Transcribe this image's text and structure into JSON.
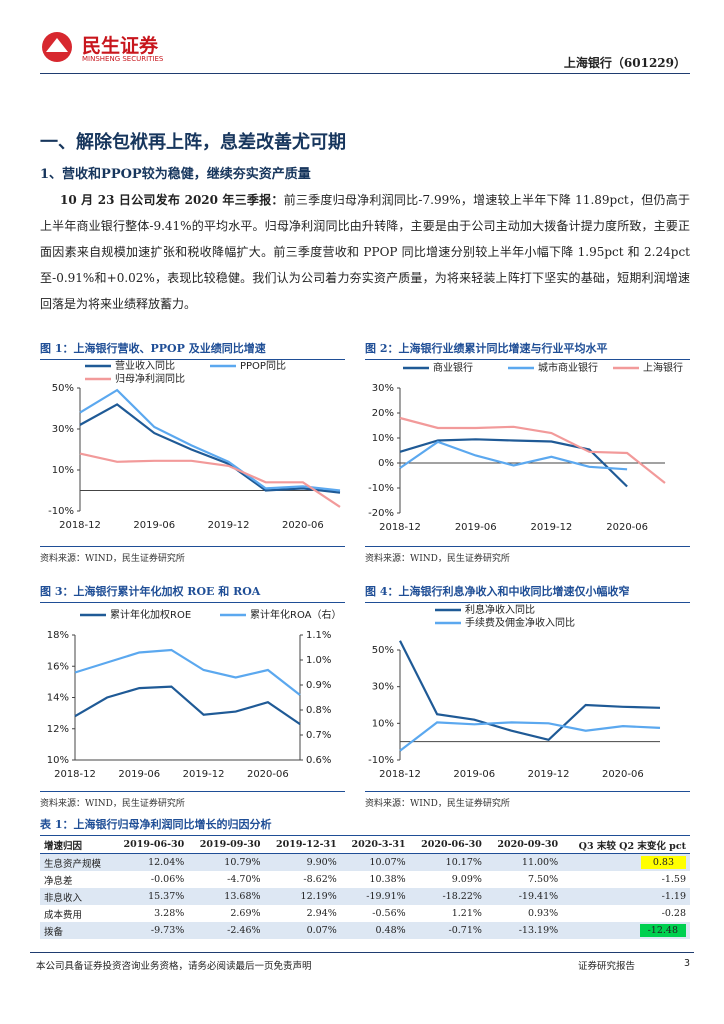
{
  "header": {
    "logo_cn": "民生证券",
    "logo_en": "MINSHENG SECURITIES",
    "stock": "上海银行（601229）"
  },
  "heading": "一、解除包袱再上阵，息差改善尤可期",
  "subheading": "1、营收和PPOP较为稳健，继续夯实资产质量",
  "body": {
    "lead": "10 月 23 日公司发布 2020 年三季报：",
    "text": "前三季度归母净利润同比-7.99%，增速较上半年下降 11.89pct，但仍高于上半年商业银行整体-9.41%的平均水平。归母净利润同比由升转降，主要是由于公司主动加大拨备计提力度所致，主要正面因素来自规模加速扩张和税收降幅扩大。前三季度营收和 PPOP 同比增速分别较上半年小幅下降 1.95pct 和 2.24pct 至-0.91%和+0.02%，表现比较稳健。我们认为公司着力夯实资产质量，为将来轻装上阵打下坚实的基础，短期利润增速回落是为将来业绩释放蓄力。"
  },
  "chart_data": [
    {
      "type": "line",
      "title": "图 1：上海银行营收、PPOP 及业绩同比增速",
      "source": "资料来源：WIND，民生证券研究所",
      "categories": [
        "2018-12",
        null,
        "2019-06",
        null,
        "2019-12",
        null,
        "2020-06",
        null
      ],
      "ylim": [
        -10,
        50
      ],
      "yticks": [
        {
          "value": -10,
          "label": "-10%"
        },
        {
          "value": 10,
          "label": "10%"
        },
        {
          "value": 30,
          "label": "30%"
        },
        {
          "value": 50,
          "label": "50%"
        }
      ],
      "series": [
        {
          "name": "营业收入同比",
          "color": "#1f5a96",
          "values": [
            32,
            42,
            28,
            20,
            13,
            0,
            1,
            -1
          ]
        },
        {
          "name": "PPOP同比",
          "color": "#5ba8ef",
          "values": [
            38,
            49,
            31,
            22,
            14,
            1,
            2,
            0
          ]
        },
        {
          "name": "归母净利润同比",
          "color": "#f29a9a",
          "values": [
            18,
            14,
            14.5,
            14.5,
            12,
            4,
            4,
            -8
          ]
        }
      ]
    },
    {
      "type": "line",
      "title": "图 2：上海银行业绩累计同比增速与行业平均水平",
      "source": "资料来源：WIND，民生证券研究所",
      "categories": [
        "2018-12",
        null,
        "2019-06",
        null,
        "2019-12",
        null,
        "2020-06",
        null
      ],
      "ylim": [
        -20,
        30
      ],
      "yticks": [
        {
          "value": -20,
          "label": "-20%"
        },
        {
          "value": -10,
          "label": "-10%"
        },
        {
          "value": 0,
          "label": "0%"
        },
        {
          "value": 10,
          "label": "10%"
        },
        {
          "value": 20,
          "label": "20%"
        },
        {
          "value": 30,
          "label": "30%"
        }
      ],
      "series": [
        {
          "name": "商业银行",
          "color": "#1f5a96",
          "values": [
            4.5,
            9,
            9.5,
            9,
            8.6,
            5.4,
            -9.4,
            null
          ]
        },
        {
          "name": "城市商业银行",
          "color": "#5ba8ef",
          "values": [
            -2,
            8.5,
            3,
            -1,
            2.5,
            -1.5,
            -2.5,
            null
          ]
        },
        {
          "name": "上海银行",
          "color": "#f29a9a",
          "values": [
            18,
            14,
            14,
            14.5,
            12,
            4.5,
            4,
            -8
          ]
        }
      ]
    },
    {
      "type": "line",
      "title": "图 3：上海银行累计年化加权 ROE 和 ROA",
      "source": "资料来源：WIND，民生证券研究所",
      "categories": [
        "2018-12",
        null,
        "2019-06",
        null,
        "2019-12",
        null,
        "2020-06",
        null
      ],
      "ylim": [
        10,
        18
      ],
      "yticks": [
        {
          "value": 10,
          "label": "10%"
        },
        {
          "value": 12,
          "label": "12%"
        },
        {
          "value": 14,
          "label": "14%"
        },
        {
          "value": 16,
          "label": "16%"
        },
        {
          "value": 18,
          "label": "18%"
        }
      ],
      "y2lim": [
        0.6,
        1.1
      ],
      "y2ticks": [
        {
          "value": 0.6,
          "label": "0.6%"
        },
        {
          "value": 0.7,
          "label": "0.7%"
        },
        {
          "value": 0.8,
          "label": "0.8%"
        },
        {
          "value": 0.9,
          "label": "0.9%"
        },
        {
          "value": 1.0,
          "label": "1.0%"
        },
        {
          "value": 1.1,
          "label": "1.1%"
        }
      ],
      "series": [
        {
          "name": "累计年化加权ROE",
          "color": "#1f5a96",
          "values": [
            12.8,
            14.0,
            14.6,
            14.7,
            12.9,
            13.1,
            13.7,
            12.3
          ]
        },
        {
          "name": "累计年化ROA（右）",
          "color": "#5ba8ef",
          "axis": "y2",
          "values": [
            0.95,
            0.99,
            1.03,
            1.04,
            0.96,
            0.93,
            0.96,
            0.86
          ]
        }
      ]
    },
    {
      "type": "line",
      "title": "图 4：上海银行利息净收入和中收同比增速仅小幅收窄",
      "source": "资料来源：WIND，民生证券研究所",
      "categories": [
        "2018-12",
        null,
        "2019-06",
        null,
        "2019-12",
        null,
        "2020-06",
        null
      ],
      "ylim": [
        -10,
        50
      ],
      "yticks": [
        {
          "value": -10,
          "label": "-10%"
        },
        {
          "value": 10,
          "label": "10%"
        },
        {
          "value": 30,
          "label": "30%"
        },
        {
          "value": 50,
          "label": "50%"
        }
      ],
      "series": [
        {
          "name": "利息净收入同比",
          "color": "#1f5a96",
          "values": [
            55,
            15,
            12,
            6,
            1,
            20,
            19,
            18.5
          ]
        },
        {
          "name": "手续费及佣金净收入同比",
          "color": "#5ba8ef",
          "values": [
            -5,
            10.5,
            9.5,
            10.5,
            10,
            6,
            8.5,
            7.5
          ]
        }
      ]
    }
  ],
  "table": {
    "title": "表 1：上海银行归母净利润同比增长的归因分析",
    "header": [
      "增速归因",
      "2019-06-30",
      "2019-09-30",
      "2019-12-31",
      "2020-3-31",
      "2020-06-30",
      "2020-09-30",
      "Q3 末较 Q2 末变化 pct"
    ],
    "rows": [
      [
        "生息资产规模",
        "12.04%",
        "10.79%",
        "9.90%",
        "10.07%",
        "10.17%",
        "11.00%",
        "0.83"
      ],
      [
        "净息差",
        "-0.06%",
        "-4.70%",
        "-8.62%",
        "10.38%",
        "9.09%",
        "7.50%",
        "-1.59"
      ],
      [
        "非息收入",
        "15.37%",
        "13.68%",
        "12.19%",
        "-19.91%",
        "-18.22%",
        "-19.41%",
        "-1.19"
      ],
      [
        "成本费用",
        "3.28%",
        "2.69%",
        "2.94%",
        "-0.56%",
        "1.21%",
        "0.93%",
        "-0.28"
      ],
      [
        "拨备",
        "-9.73%",
        "-2.46%",
        "0.07%",
        "0.48%",
        "-0.71%",
        "-13.19%",
        "-12.48"
      ]
    ]
  },
  "footer": {
    "disclaimer": "本公司具备证券投资咨询业务资格，请务必阅读最后一页免责声明",
    "label": "证券研究报告",
    "page": "3"
  }
}
